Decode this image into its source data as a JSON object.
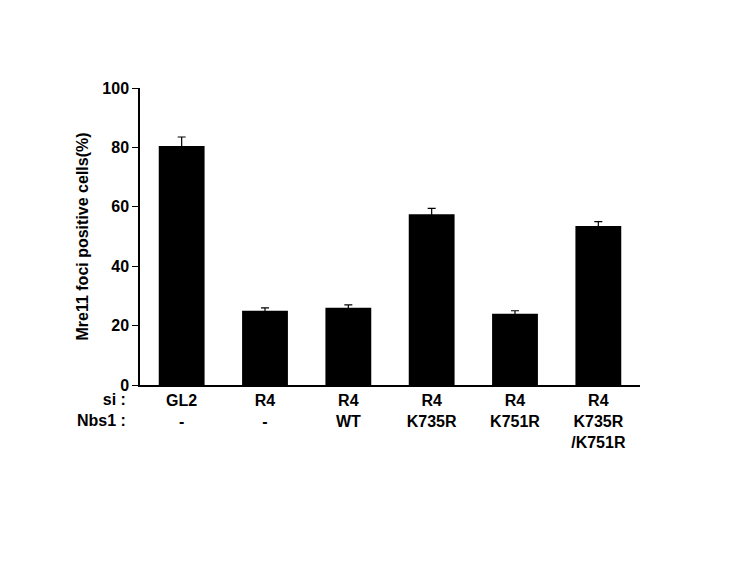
{
  "chart_data": {
    "type": "bar",
    "y_label": "Mre11 foci positive cells(%)",
    "category_rows": [
      {
        "label": "si :",
        "values": [
          "GL2",
          "R4",
          "R4",
          "R4",
          "R4",
          "R4"
        ]
      },
      {
        "label": "Nbs1 :",
        "values": [
          "-",
          "-",
          "WT",
          "K735R",
          "K751R",
          "K735R\n/K751R"
        ]
      }
    ],
    "values": [
      80.5,
      25,
      26,
      57.5,
      24,
      53.5
    ],
    "error": [
      3,
      1,
      1,
      2,
      1,
      1.5
    ],
    "color": "#000000",
    "ylim": [
      0,
      100
    ],
    "yticks": [
      0,
      20,
      40,
      60,
      80,
      100
    ],
    "grid": false
  }
}
